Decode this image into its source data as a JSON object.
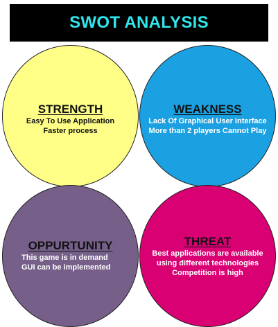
{
  "title": "SWOT ANALYSIS",
  "colors": {
    "title_bg": "#000000",
    "title_text": "#2fe6ec",
    "strength": "#ffff88",
    "weakness": "#1ba1e2",
    "opportunity": "#76608a",
    "threat": "#d80073"
  },
  "quadrants": {
    "strength": {
      "heading": "STRENGTH",
      "lines": [
        "Easy To Use Application",
        "Faster process"
      ]
    },
    "weakness": {
      "heading": "WEAKNESS",
      "lines": [
        "Lack Of Graphical User Interface",
        "More than 2 players Cannot Play"
      ]
    },
    "opportunity": {
      "heading": "OPPURTUNITY",
      "lines": [
        "This game is in demand",
        "GUI can be implemented"
      ]
    },
    "threat": {
      "heading": "THREAT",
      "lines": [
        "Best applications are available",
        "using different technologies",
        "Competition is high"
      ]
    }
  }
}
